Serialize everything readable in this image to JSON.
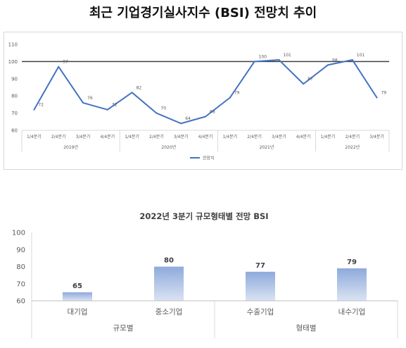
{
  "chart_data": [
    {
      "type": "line",
      "title": "최근 기업경기실사지수 (BSI) 전망치 추이",
      "categories": [
        "1/4분기",
        "2/4분기",
        "3/4분기",
        "4/4분기",
        "1/4분기",
        "2/4분기",
        "3/4분기",
        "4/4분기",
        "1/4분기",
        "2/4분기",
        "3/4분기",
        "4/4분기",
        "1/4분기",
        "2/4분기",
        "3/4분기"
      ],
      "groups": [
        {
          "label": "2019년",
          "span": 4
        },
        {
          "label": "2020년",
          "span": 4
        },
        {
          "label": "2021년",
          "span": 4
        },
        {
          "label": "2022년",
          "span": 3
        }
      ],
      "series": [
        {
          "name": "전망치",
          "values": [
            72,
            97,
            76,
            72,
            82,
            70,
            64,
            68,
            79,
            100,
            101,
            87,
            98,
            101,
            79
          ],
          "color": "#4472c4"
        }
      ],
      "ylim": [
        60,
        110
      ],
      "yticks": [
        60,
        70,
        80,
        90,
        100,
        110
      ],
      "reference_line": {
        "value": 100,
        "color": "#404040"
      },
      "grid": false,
      "legend": "bottom",
      "data_labels": true
    },
    {
      "type": "bar",
      "title": "2022년 3분기 규모형태별 전망 BSI",
      "categories": [
        "대기업",
        "중소기업",
        "수출기업",
        "내수기업"
      ],
      "groups": [
        {
          "label": "규모별",
          "span": 2
        },
        {
          "label": "형태별",
          "span": 2
        }
      ],
      "values": [
        65,
        80,
        77,
        79
      ],
      "ylim": [
        60,
        100
      ],
      "yticks": [
        60,
        70,
        80,
        90,
        100
      ],
      "bar_color": {
        "top": "#8eaadb",
        "bottom": "#dae3f3"
      },
      "grid": false,
      "data_labels": true
    }
  ]
}
